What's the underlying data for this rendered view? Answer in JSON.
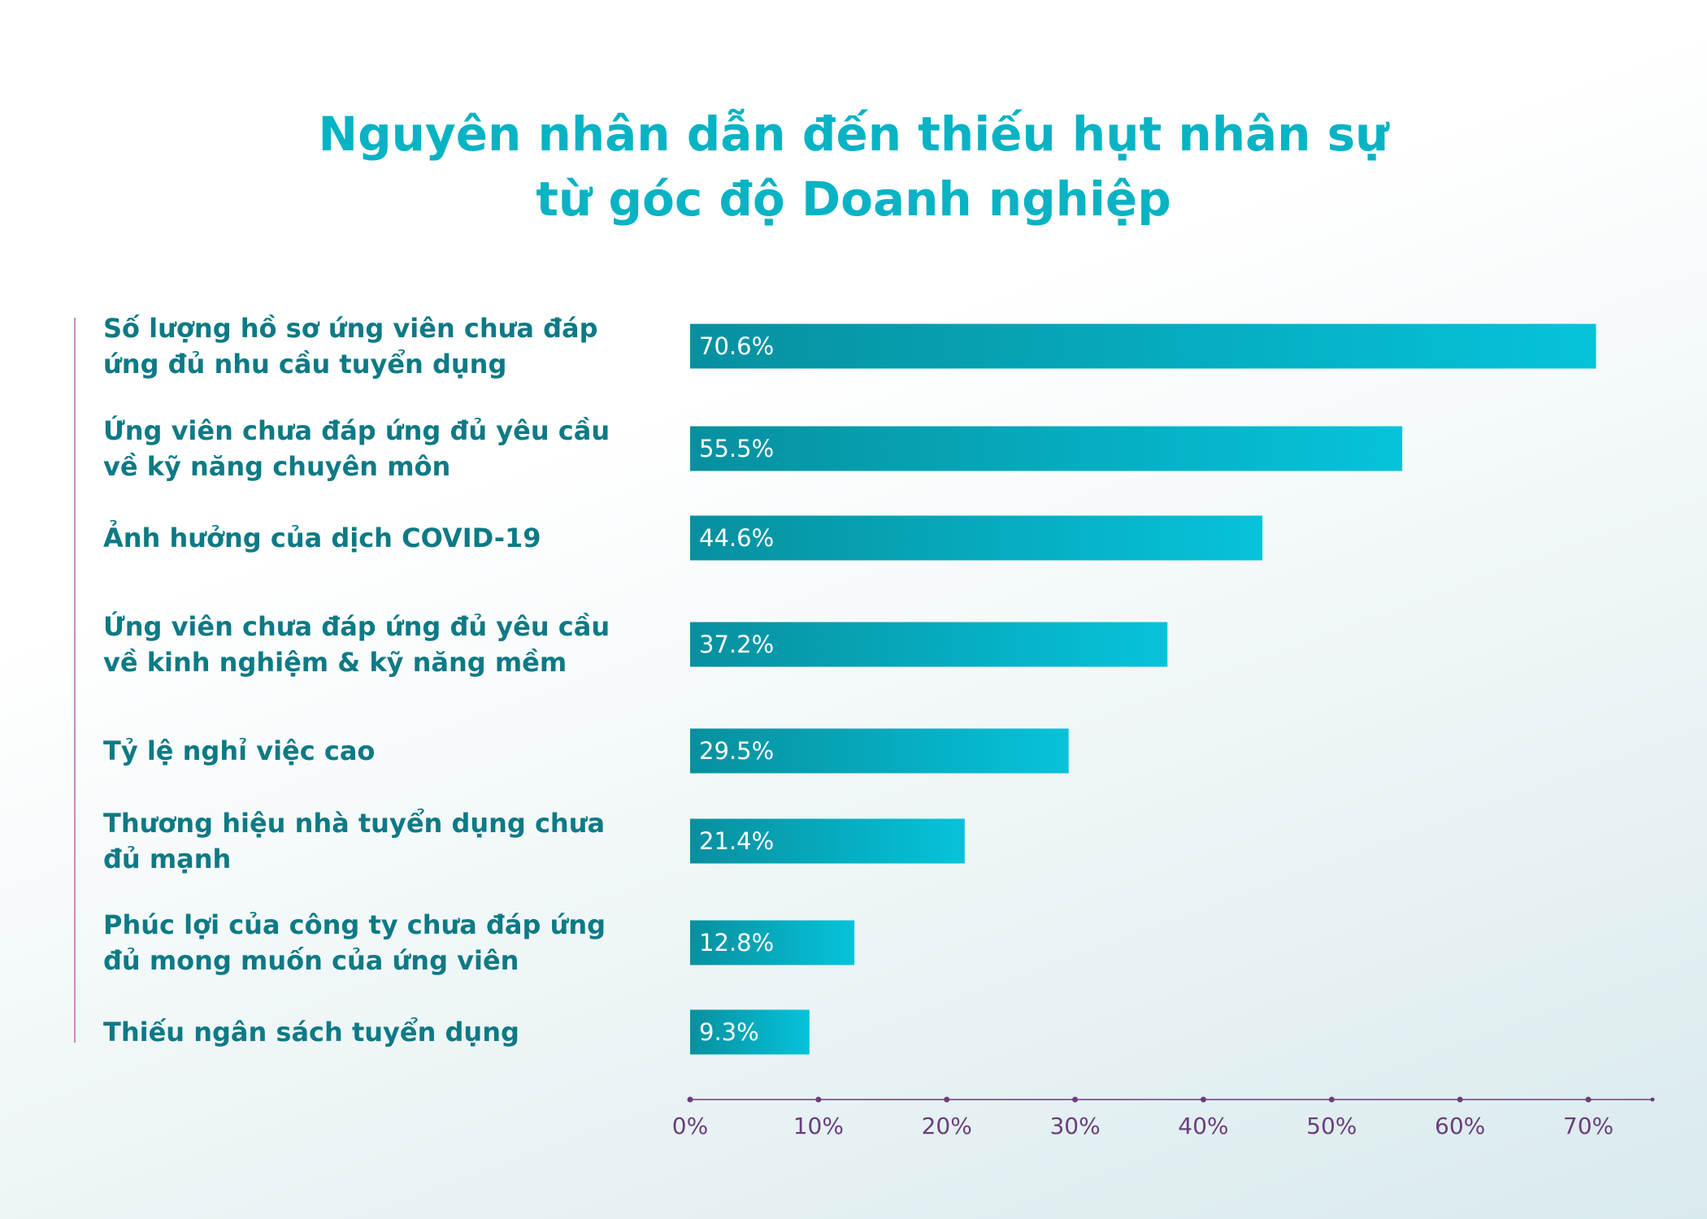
{
  "chart_data": {
    "type": "barh",
    "title": [
      "Nguyên nhân dẫn đến thiếu hụt nhân sự",
      "từ góc độ Doanh nghiệp"
    ],
    "categories": [
      "Số lượng hồ sơ ứng viên chưa đáp ứng đủ nhu cầu tuyển dụng",
      "Ứng viên chưa đáp ứng đủ yêu cầu về kỹ năng chuyên môn",
      "Ảnh hưởng của dịch COVID-19",
      "Ứng viên chưa đáp ứng đủ yêu cầu về kinh nghiệm & kỹ năng mềm",
      "Tỷ lệ nghỉ việc cao",
      "Thương hiệu nhà tuyển dụng chưa đủ mạnh",
      "Phúc lợi của công ty chưa đáp ứng đủ mong muốn của ứng viên",
      "Thiếu ngân sách tuyển dụng"
    ],
    "values": [
      70.6,
      55.5,
      44.6,
      37.2,
      29.5,
      21.4,
      12.8,
      9.3
    ],
    "value_labels": [
      "70.6%",
      "55.5%",
      "44.6%",
      "37.2%",
      "29.5%",
      "21.4%",
      "12.8%",
      "9.3%"
    ],
    "colors": [
      "#07909f",
      "#06c3da"
    ],
    "xlim": [
      0,
      75
    ],
    "xticks": [
      {
        "value": 0,
        "label": "0%"
      },
      {
        "value": 10,
        "label": "10%"
      },
      {
        "value": 20,
        "label": "20%"
      },
      {
        "value": 30,
        "label": "30%"
      },
      {
        "value": 40,
        "label": "40%"
      },
      {
        "value": 50,
        "label": "50%"
      },
      {
        "value": 60,
        "label": "60%"
      },
      {
        "value": 70,
        "label": "70%"
      }
    ]
  }
}
